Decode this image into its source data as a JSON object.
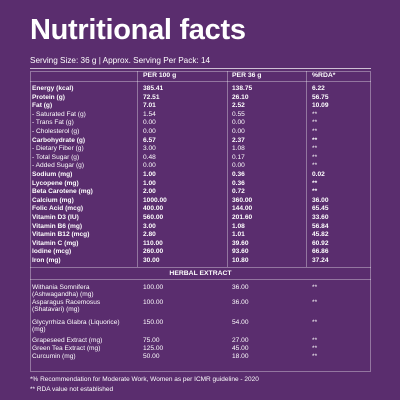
{
  "title": "Nutritional facts",
  "serving": "Serving Size: 36 g  |  Approx. Serving Per Pack: 14",
  "headers": [
    "PER 100 g",
    "PER 36 g",
    "%RDA*"
  ],
  "rows": [
    {
      "label": "Energy (kcal)",
      "bold": true,
      "v100": "385.41",
      "v36": "138.75",
      "rda": "6.22"
    },
    {
      "label": "Protein (g)",
      "bold": true,
      "v100": "72.51",
      "v36": "26.10",
      "rda": "56.75"
    },
    {
      "label": "Fat (g)",
      "bold": true,
      "v100": "7.01",
      "v36": "2.52",
      "rda": "10.09"
    },
    {
      "label": "- Saturated Fat (g)",
      "bold": false,
      "v100": "1.54",
      "v36": "0.55",
      "rda": "**"
    },
    {
      "label": "- Trans Fat (g)",
      "bold": false,
      "v100": "0.00",
      "v36": "0.00",
      "rda": "**"
    },
    {
      "label": "- Cholesterol (g)",
      "bold": false,
      "v100": "0.00",
      "v36": "0.00",
      "rda": "**"
    },
    {
      "label": "Carbohydrate (g)",
      "bold": true,
      "v100": "6.57",
      "v36": "2.37",
      "rda": "**"
    },
    {
      "label": "- Dietary Fiber (g)",
      "bold": false,
      "v100": "3.00",
      "v36": "1.08",
      "rda": "**"
    },
    {
      "label": "- Total Sugar (g)",
      "bold": false,
      "v100": "0.48",
      "v36": "0.17",
      "rda": "**"
    },
    {
      "label": "- Added Sugar (g)",
      "bold": false,
      "v100": "0.00",
      "v36": "0.00",
      "rda": "**"
    },
    {
      "label": "Sodium (mg)",
      "bold": true,
      "v100": "1.00",
      "v36": "0.36",
      "rda": "0.02"
    },
    {
      "label": "Lycopene (mg)",
      "bold": true,
      "v100": "1.00",
      "v36": "0.36",
      "rda": "**"
    },
    {
      "label": "Beta Carotene (mg)",
      "bold": true,
      "v100": "2.00",
      "v36": "0.72",
      "rda": "**"
    },
    {
      "label": "Calcium (mg)",
      "bold": true,
      "v100": "1000.00",
      "v36": "360.00",
      "rda": "36.00"
    },
    {
      "label": "Folic Acid (mcg)",
      "bold": true,
      "v100": "400.00",
      "v36": "144.00",
      "rda": "65.45"
    },
    {
      "label": "Vitamin D3 (IU)",
      "bold": true,
      "v100": "560.00",
      "v36": "201.60",
      "rda": "33.60"
    },
    {
      "label": "Vitamin B6 (mg)",
      "bold": true,
      "v100": "3.00",
      "v36": "1.08",
      "rda": "56.84"
    },
    {
      "label": "Vitamin B12 (mcg)",
      "bold": true,
      "v100": "2.80",
      "v36": "1.01",
      "rda": "45.82"
    },
    {
      "label": "Vitamin C (mg)",
      "bold": true,
      "v100": "110.00",
      "v36": "39.60",
      "rda": "60.92"
    },
    {
      "label": "Iodine (mcg)",
      "bold": true,
      "v100": "260.00",
      "v36": "93.60",
      "rda": "66.86"
    },
    {
      "label": "Iron (mg)",
      "bold": true,
      "v100": "30.00",
      "v36": "10.80",
      "rda": "37.24"
    }
  ],
  "herbal_title": "HERBAL EXTRACT",
  "herbal_rows": [
    {
      "label": "Withania Somnifera (Ashwagandha) (mg)",
      "v100": "100.00",
      "v36": "36.00",
      "rda": "**"
    },
    {
      "label": "Asparagus Racemosus (Shatavari) (mg)",
      "v100": "100.00",
      "v36": "36.00",
      "rda": "**"
    },
    {
      "label": "Glycyrrhiza Glabra (Liquorice) (mg)",
      "v100": "150.00",
      "v36": "54.00",
      "rda": "**"
    },
    {
      "label": "Grapeseed Extract (mg)",
      "v100": "75.00",
      "v36": "27.00",
      "rda": "**"
    },
    {
      "label": "Green Tea Extract (mg)",
      "v100": "125.00",
      "v36": "45.00",
      "rda": "**"
    },
    {
      "label": "Curcumin (mg)",
      "v100": "50.00",
      "v36": "18.00",
      "rda": "**"
    }
  ],
  "footnotes": [
    "*% Recommendation for Moderate Work, Women as per ICMR guideline - 2020",
    "** RDA value not established"
  ]
}
